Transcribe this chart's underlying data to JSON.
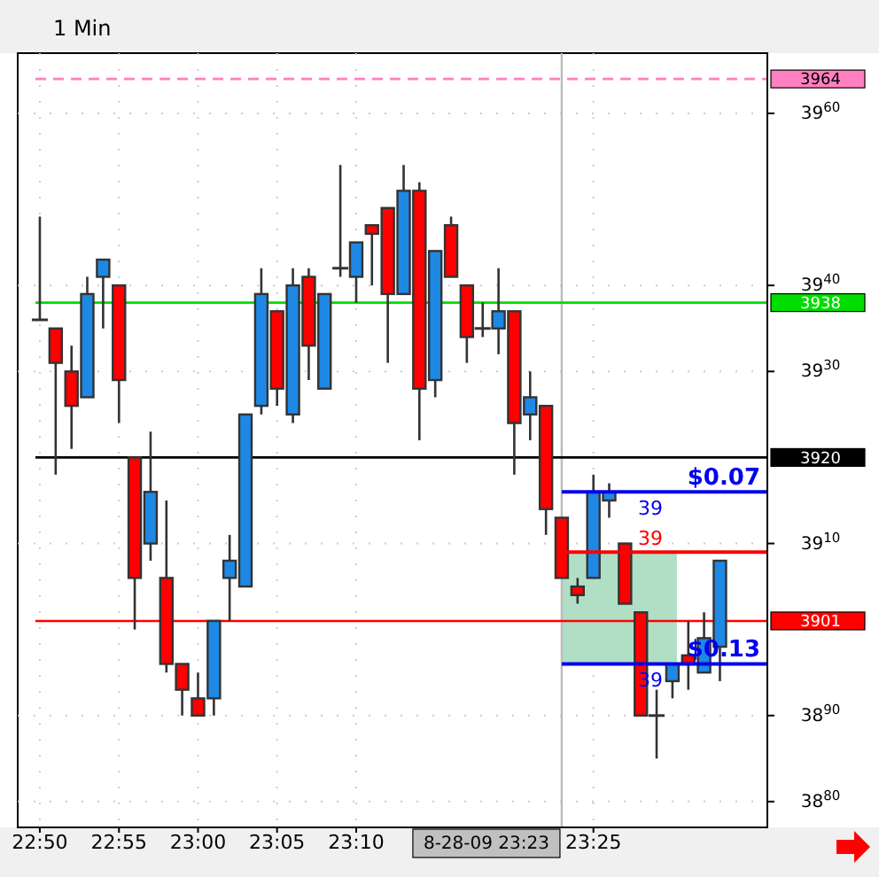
{
  "chart_data": {
    "type": "candlestick",
    "title": "1 Min",
    "x": [
      22.8333,
      22.85,
      22.8667,
      22.8833,
      22.9,
      22.9167,
      22.9333,
      22.95,
      22.9667,
      22.9833,
      23,
      23.0167,
      23.0333,
      23.05,
      23.0667,
      23.0833,
      23.1,
      23.1167,
      23.1333,
      23.15,
      23.1667,
      23.1833,
      23.2,
      23.2167,
      23.2333,
      23.25,
      23.2667,
      23.2833,
      23.3,
      23.3167,
      23.3333,
      23.35,
      23.3667,
      23.3833,
      23.4,
      23.4167,
      23.4333,
      23.45,
      23.4667,
      23.4833,
      23.5,
      23.5167,
      23.5333,
      23.55
    ],
    "ohlc": [
      [
        3936,
        3948,
        3936,
        3936
      ],
      [
        3935,
        3935,
        3918,
        3931
      ],
      [
        3930,
        3933,
        3921,
        3926
      ],
      [
        3927,
        3941,
        3927,
        3939
      ],
      [
        3941,
        3943,
        3935,
        3943
      ],
      [
        3940,
        3940,
        3924,
        3929
      ],
      [
        3920,
        3920,
        3900,
        3906
      ],
      [
        3910,
        3923,
        3908,
        3916
      ],
      [
        3906,
        3915,
        3895,
        3896
      ],
      [
        3896,
        3896,
        3890,
        3893
      ],
      [
        3892,
        3895,
        3890,
        3890
      ],
      [
        3892,
        3901,
        3890,
        3901
      ],
      [
        3906,
        3911,
        3901,
        3908
      ],
      [
        3905,
        3925,
        3905,
        3925
      ],
      [
        3926,
        3942,
        3925,
        3939
      ],
      [
        3937,
        3937,
        3926,
        3928
      ],
      [
        3925,
        3942,
        3924,
        3940
      ],
      [
        3941,
        3942,
        3929,
        3933
      ],
      [
        3928,
        3939,
        3928,
        3939
      ],
      [
        3942,
        3954,
        3941,
        3942
      ],
      [
        3941,
        3945,
        3938,
        3945
      ],
      [
        3947,
        3947,
        3940,
        3946
      ],
      [
        3949,
        3949,
        3931,
        3939
      ],
      [
        3939,
        3954,
        3939,
        3951
      ],
      [
        3951,
        3952,
        3922,
        3928
      ],
      [
        3929,
        3944,
        3927,
        3944
      ],
      [
        3947,
        3948,
        3941,
        3941
      ],
      [
        3940,
        3940,
        3931,
        3934
      ],
      [
        3935,
        3938,
        3934,
        3935
      ],
      [
        3935,
        3942,
        3932,
        3937
      ],
      [
        3937,
        3937,
        3918,
        3924
      ],
      [
        3925,
        3930,
        3922,
        3927
      ],
      [
        3926,
        3926,
        3911,
        3914
      ],
      [
        3913,
        3913,
        3906,
        3906
      ],
      [
        3905,
        3906,
        3903,
        3904
      ],
      [
        3906,
        3918,
        3906,
        3916
      ],
      [
        3915,
        3917,
        3913,
        3916
      ],
      [
        3910,
        3910,
        3903,
        3903
      ],
      [
        3902,
        3902,
        3890,
        3890
      ],
      [
        3890,
        3893,
        3885,
        3890
      ],
      [
        3894,
        3896,
        3892,
        3896
      ],
      [
        3897,
        3901,
        3893,
        3896
      ],
      [
        3895,
        3902,
        3895,
        3899
      ],
      [
        3898,
        3908,
        3894,
        3908
      ]
    ],
    "colors": [
      "#333333",
      "#ff0000",
      "#ff0000",
      "#1e88e5",
      "#1e88e5",
      "#ff0000",
      "#ff0000",
      "#1e88e5",
      "#ff0000",
      "#ff0000",
      "#ff0000",
      "#1e88e5",
      "#1e88e5",
      "#1e88e5",
      "#1e88e5",
      "#ff0000",
      "#1e88e5",
      "#ff0000",
      "#1e88e5",
      "#333333",
      "#1e88e5",
      "#ff0000",
      "#ff0000",
      "#1e88e5",
      "#ff0000",
      "#1e88e5",
      "#ff0000",
      "#ff0000",
      "#333333",
      "#1e88e5",
      "#ff0000",
      "#1e88e5",
      "#ff0000",
      "#ff0000",
      "#ff0000",
      "#1e88e5",
      "#1e88e5",
      "#ff0000",
      "#ff0000",
      "#333333",
      "#1e88e5",
      "#ff0000",
      "#1e88e5",
      "#1e88e5"
    ],
    "xlim": [
      22.81,
      23.6
    ],
    "xticks": [
      {
        "value": 22.8333,
        "label": "22:50"
      },
      {
        "value": 22.9167,
        "label": "22:55"
      },
      {
        "value": 23,
        "label": "23:00"
      },
      {
        "value": 23.0833,
        "label": "23:05"
      },
      {
        "value": 23.1667,
        "label": "23:10"
      },
      {
        "value": 23.4167,
        "label": "23:25"
      }
    ],
    "ylim": [
      3877,
      3967
    ],
    "yticks": [
      3880,
      3890,
      3910,
      3930,
      3940,
      3960
    ],
    "grid": true,
    "ref_lines": [
      {
        "axis": "y",
        "value": 3964,
        "label": "3964",
        "color": "#ff80c0",
        "line_style": "dashed"
      },
      {
        "axis": "y",
        "value": 3938,
        "label": "3938",
        "color": "#00dd00",
        "line_style": "solid"
      },
      {
        "axis": "y",
        "value": 3920,
        "label": "3920",
        "color": "#000000",
        "line_style": "solid"
      },
      {
        "axis": "y",
        "value": 3901,
        "label": "3901",
        "color": "#ff0000",
        "line_style": "solid"
      },
      {
        "axis": "y",
        "value": 3916,
        "label": null,
        "color": "#0000ee",
        "line_style": "solid"
      },
      {
        "axis": "y",
        "value": 3909,
        "label": null,
        "color": "#ff0000",
        "line_style": "solid"
      },
      {
        "axis": "y",
        "value": 3896,
        "label": null,
        "color": "#0000ee",
        "line_style": "solid"
      },
      {
        "axis": "x",
        "value": 23.3833,
        "label": "8-28-09 23:23",
        "color": "#bbbbbb",
        "line_style": "solid"
      }
    ],
    "bands": [
      {
        "axis": "y",
        "from": 3896,
        "to": 3909,
        "color": "#a8dcc0"
      }
    ],
    "annotations": [
      "$0.07",
      "39",
      "39",
      "$0.13",
      "39"
    ]
  }
}
